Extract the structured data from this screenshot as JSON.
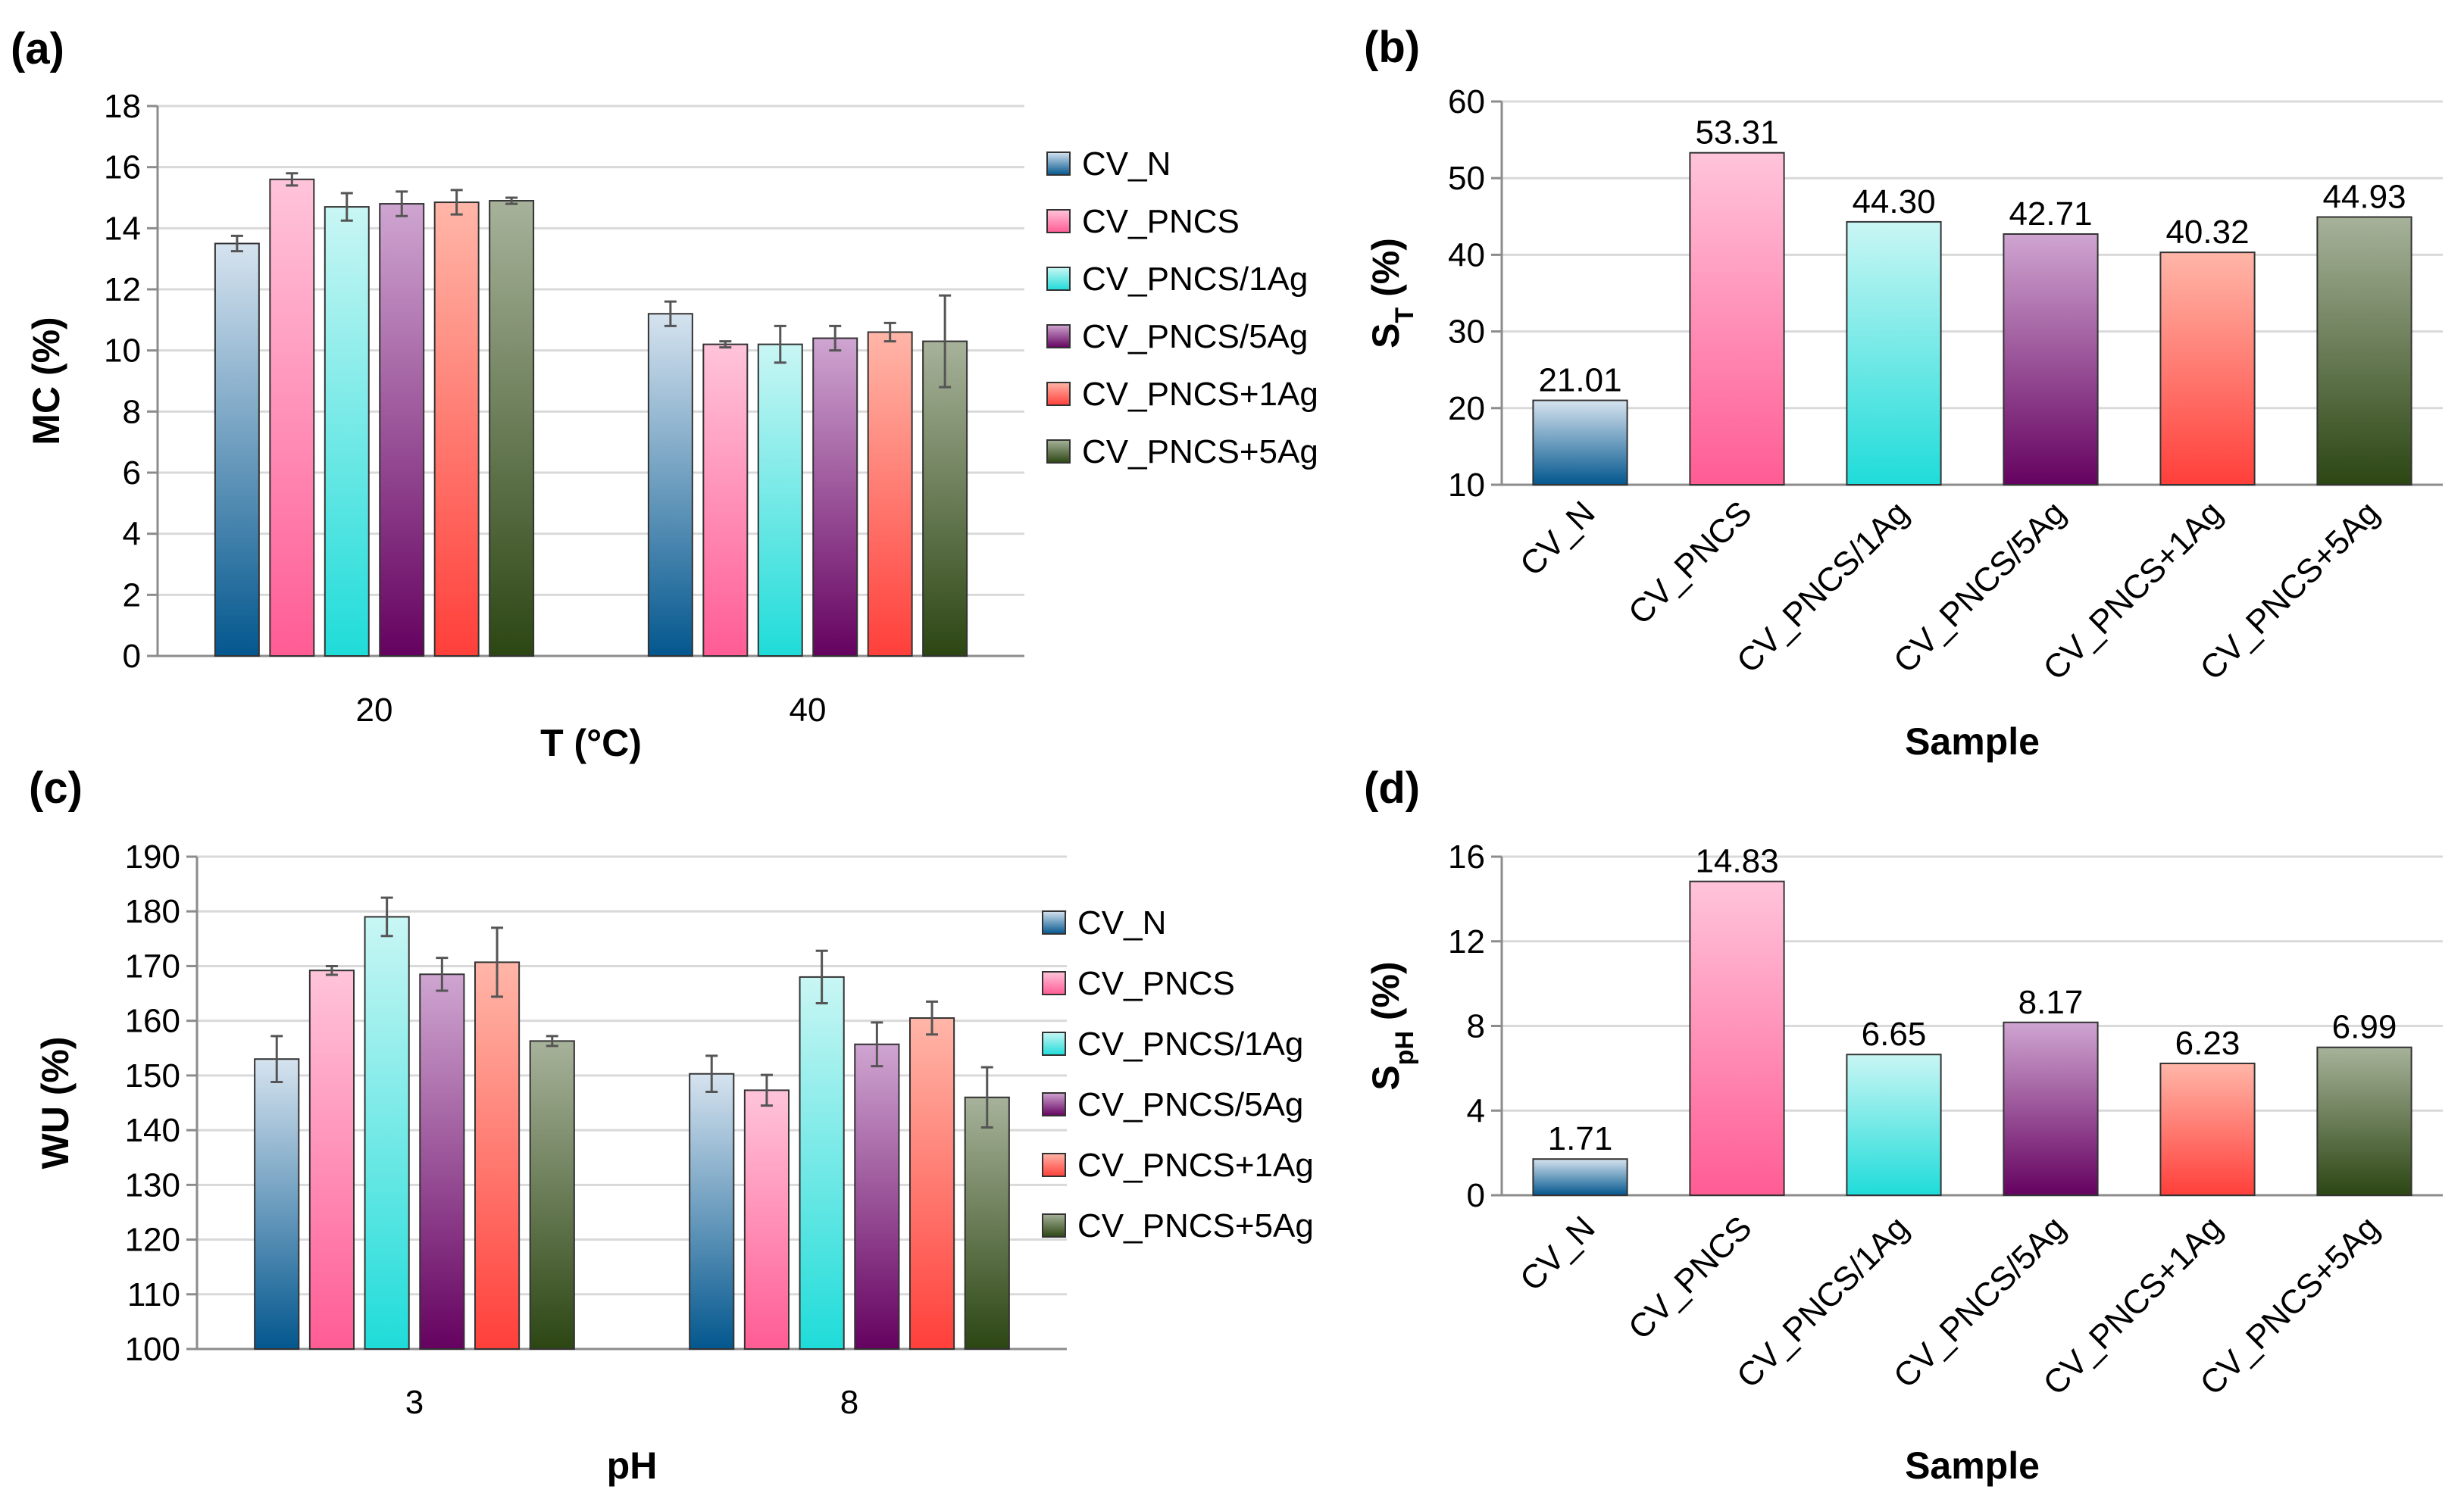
{
  "figure": {
    "series_colors": {
      "CV_N": {
        "top": "#d6e3ef",
        "bottom": "#03578e"
      },
      "CV_PNCS": {
        "top": "#ffc4da",
        "bottom": "#ff5c94"
      },
      "CV_PNCS/1Ag": {
        "top": "#c9f6f4",
        "bottom": "#1fdcd9"
      },
      "CV_PNCS/5Ag": {
        "top": "#cfa5d1",
        "bottom": "#650260"
      },
      "CV_PNCS+1Ag": {
        "top": "#ffb6a8",
        "bottom": "#ff3f3a"
      },
      "CV_PNCS+5Ag": {
        "top": "#a7b29a",
        "bottom": "#2c4613"
      }
    }
  },
  "chart_data": [
    {
      "panel": "(a)",
      "type": "bar",
      "title": "",
      "xlabel": "T (°C)",
      "ylabel": "MC (%)",
      "categories": [
        "20",
        "40"
      ],
      "ylim": [
        0,
        18
      ],
      "yticks": [
        0,
        2,
        4,
        6,
        8,
        10,
        12,
        14,
        16,
        18
      ],
      "legend_position": "right",
      "series": [
        {
          "name": "CV_N",
          "values": [
            13.5,
            11.2
          ],
          "errors": [
            0.25,
            0.4
          ]
        },
        {
          "name": "CV_PNCS",
          "values": [
            15.6,
            10.2
          ],
          "errors": [
            0.2,
            0.1
          ]
        },
        {
          "name": "CV_PNCS/1Ag",
          "values": [
            14.7,
            10.2
          ],
          "errors": [
            0.45,
            0.6
          ]
        },
        {
          "name": "CV_PNCS/5Ag",
          "values": [
            14.8,
            10.4
          ],
          "errors": [
            0.4,
            0.4
          ]
        },
        {
          "name": "CV_PNCS+1Ag",
          "values": [
            14.85,
            10.6
          ],
          "errors": [
            0.4,
            0.3
          ]
        },
        {
          "name": "CV_PNCS+5Ag",
          "values": [
            14.9,
            10.3
          ],
          "errors": [
            0.1,
            1.5
          ]
        }
      ]
    },
    {
      "panel": "(b)",
      "type": "bar",
      "title": "",
      "xlabel": "Sample",
      "ylabel": "S",
      "ylabel_sub": "T",
      "ylabel_suffix": " (%)",
      "categories": [
        "CV_N",
        "CV_PNCS",
        "CV_PNCS/1Ag",
        "CV_PNCS/5Ag",
        "CV_PNCS+1Ag",
        "CV_PNCS+5Ag"
      ],
      "values": [
        21.01,
        53.31,
        44.3,
        42.71,
        40.32,
        44.93
      ],
      "value_labels": [
        "21.01",
        "53.31",
        "44.30",
        "42.71",
        "40.32",
        "44.93"
      ],
      "ylim": [
        10,
        60
      ],
      "yticks": [
        10,
        20,
        30,
        40,
        50,
        60
      ]
    },
    {
      "panel": "(c)",
      "type": "bar",
      "title": "",
      "xlabel": "pH",
      "ylabel": "WU (%)",
      "categories": [
        "3",
        "8"
      ],
      "ylim": [
        100,
        190
      ],
      "yticks": [
        100,
        110,
        120,
        130,
        140,
        150,
        160,
        170,
        180,
        190
      ],
      "legend_position": "right",
      "series": [
        {
          "name": "CV_N",
          "values": [
            153,
            150.3
          ],
          "errors": [
            4.2,
            3.3
          ]
        },
        {
          "name": "CV_PNCS",
          "values": [
            169.2,
            147.3
          ],
          "errors": [
            0.8,
            2.8
          ]
        },
        {
          "name": "CV_PNCS/1Ag",
          "values": [
            179,
            168
          ],
          "errors": [
            3.5,
            4.8
          ]
        },
        {
          "name": "CV_PNCS/5Ag",
          "values": [
            168.5,
            155.7
          ],
          "errors": [
            3,
            4
          ]
        },
        {
          "name": "CV_PNCS+1Ag",
          "values": [
            170.7,
            160.5
          ],
          "errors": [
            6.3,
            3
          ]
        },
        {
          "name": "CV_PNCS+5Ag",
          "values": [
            156.3,
            146
          ],
          "errors": [
            0.9,
            5.5
          ]
        }
      ]
    },
    {
      "panel": "(d)",
      "type": "bar",
      "title": "",
      "xlabel": "Sample",
      "ylabel": "S",
      "ylabel_sub": "pH",
      "ylabel_suffix": " (%)",
      "categories": [
        "CV_N",
        "CV_PNCS",
        "CV_PNCS/1Ag",
        "CV_PNCS/5Ag",
        "CV_PNCS+1Ag",
        "CV_PNCS+5Ag"
      ],
      "values": [
        1.71,
        14.83,
        6.65,
        8.17,
        6.23,
        6.99
      ],
      "value_labels": [
        "1.71",
        "14.83",
        "6.65",
        "8.17",
        "6.23",
        "6.99"
      ],
      "ylim": [
        0,
        16
      ],
      "yticks": [
        0,
        4,
        8,
        12,
        16
      ]
    }
  ]
}
